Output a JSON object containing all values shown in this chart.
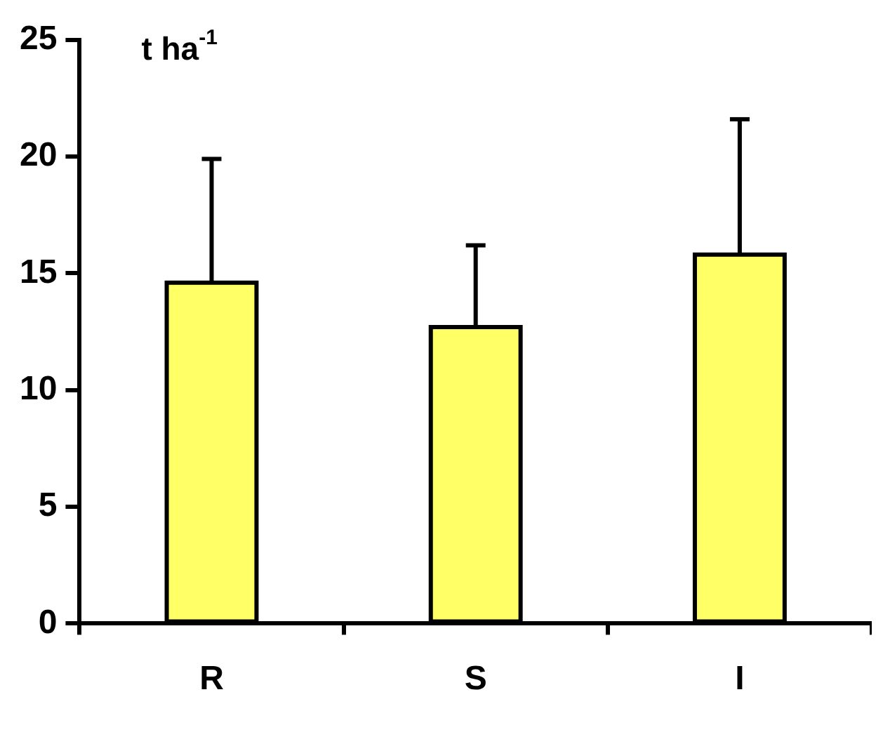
{
  "chart_data": {
    "type": "bar",
    "ylabel": "t ha$^{-1}$",
    "categories": [
      "R",
      "S",
      "I"
    ],
    "series": [
      {
        "color": "#ffff66",
        "values": [
          14.6,
          12.7,
          15.8
        ],
        "errors": [
          [
            14.6,
            19.9
          ],
          [
            12.7,
            16.2
          ],
          [
            15.8,
            21.6
          ]
        ]
      }
    ],
    "ylim": [
      0,
      25
    ],
    "yticks": [
      0,
      5,
      10,
      15,
      20,
      25
    ],
    "grid": false,
    "legend": false
  }
}
